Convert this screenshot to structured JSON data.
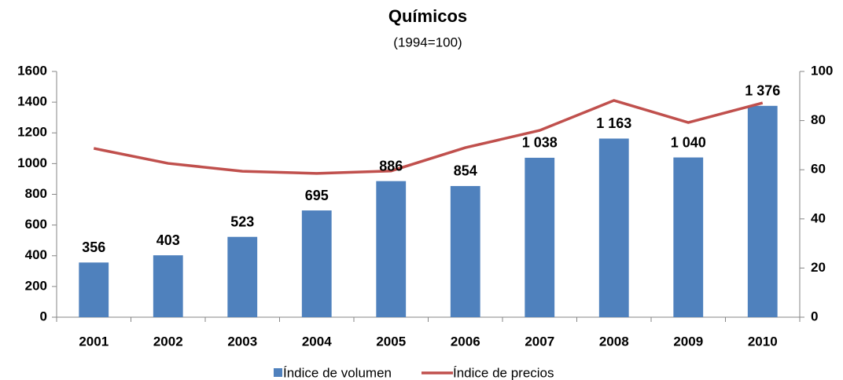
{
  "chart_data": {
    "type": "bar",
    "title": "Químicos",
    "subtitle": "(1994=100)",
    "categories": [
      "2001",
      "2002",
      "2003",
      "2004",
      "2005",
      "2006",
      "2007",
      "2008",
      "2009",
      "2010"
    ],
    "series": [
      {
        "name": "Índice de volumen",
        "type": "bar",
        "color": "#4f81bd",
        "axis": "y",
        "values": [
          356,
          403,
          523,
          695,
          886,
          854,
          1038,
          1163,
          1040,
          1376
        ],
        "value_labels": [
          "356",
          "403",
          "523",
          "695",
          "886",
          "854",
          "1 038",
          "1 163",
          "1 040",
          "1 376"
        ]
      },
      {
        "name": "Índice de precios",
        "type": "line",
        "color": "#c0504d",
        "axis": "y2",
        "values": [
          68.7,
          62.6,
          59.4,
          58.5,
          59.5,
          69,
          76,
          88.2,
          79.2,
          87.2
        ]
      }
    ],
    "ylim": [
      0,
      1600
    ],
    "yticks": [
      0,
      200,
      400,
      600,
      800,
      1000,
      1200,
      1400,
      1600
    ],
    "y2lim": [
      0,
      100
    ],
    "y2ticks": [
      0,
      20,
      40,
      60,
      80,
      100
    ],
    "grid": false,
    "legend": "bottom"
  }
}
